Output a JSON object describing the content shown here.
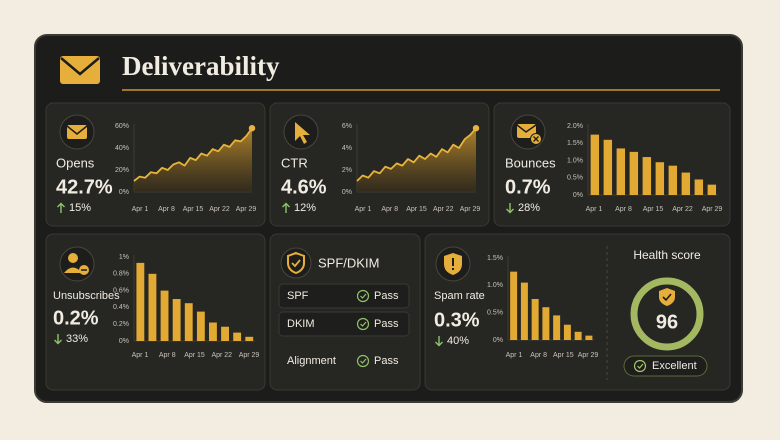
{
  "header": {
    "title": "Deliverability"
  },
  "cards": [
    {
      "label": "Opens",
      "value": "42.7%",
      "change": "15%",
      "direction": "up",
      "chart": {
        "type": "line",
        "color": "#e9b43c",
        "ylim": [
          0,
          60
        ],
        "yticks": [
          {
            "value": 0,
            "label": "0%"
          },
          {
            "value": 20,
            "label": "20%"
          },
          {
            "value": 40,
            "label": "40%"
          },
          {
            "value": 60,
            "label": "60%"
          }
        ],
        "xticks": [
          "Apr 1",
          "Apr 8",
          "Apr 15",
          "Apr 22",
          "Apr 29"
        ],
        "values": [
          10,
          14,
          13,
          18,
          17,
          22,
          20,
          25,
          27,
          24,
          31,
          29,
          35,
          33,
          39,
          37,
          43,
          41,
          47,
          46,
          51,
          58
        ]
      }
    },
    {
      "label": "CTR",
      "value": "4.6%",
      "change": "12%",
      "direction": "up",
      "chart": {
        "type": "line",
        "color": "#e9b43c",
        "ylim": [
          0,
          6
        ],
        "yticks": [
          {
            "value": 0,
            "label": "0%"
          },
          {
            "value": 2,
            "label": "2%"
          },
          {
            "value": 4,
            "label": "4%"
          },
          {
            "value": 6,
            "label": "6%"
          }
        ],
        "xticks": [
          "Apr 1",
          "Apr 8",
          "Apr 15",
          "Apr 22",
          "Apr 29"
        ],
        "values": [
          1.0,
          1.5,
          1.3,
          1.9,
          1.7,
          2.3,
          2.1,
          2.6,
          2.4,
          3.0,
          2.7,
          3.3,
          3.0,
          3.5,
          3.2,
          3.9,
          3.6,
          4.3,
          4.0,
          4.8,
          5.2,
          5.8
        ]
      }
    },
    {
      "label": "Bounces",
      "value": "0.7%",
      "change": "28%",
      "direction": "down",
      "chart": {
        "type": "bar",
        "color": "#e2aa33",
        "ylim": [
          0,
          2
        ],
        "yticks": [
          {
            "value": 0,
            "label": "0%"
          },
          {
            "value": 0.5,
            "label": "0.5%"
          },
          {
            "value": 1,
            "label": "1.0%"
          },
          {
            "value": 1.5,
            "label": "1.5%"
          },
          {
            "value": 2,
            "label": "2.0%"
          }
        ],
        "xticks": [
          "Apr 1",
          "Apr 8",
          "Apr 15",
          "Apr 22",
          "Apr 29"
        ],
        "values": [
          1.75,
          1.6,
          1.35,
          1.25,
          1.1,
          0.95,
          0.85,
          0.65,
          0.45,
          0.3
        ]
      }
    },
    {
      "label": "Unsubscribes",
      "value": "0.2%",
      "change": "33%",
      "direction": "down",
      "chart": {
        "type": "bar",
        "color": "#e2aa33",
        "ylim": [
          0,
          1
        ],
        "yticks": [
          {
            "value": 0,
            "label": "0%"
          },
          {
            "value": 0.2,
            "label": "0.2%"
          },
          {
            "value": 0.4,
            "label": "0.4%"
          },
          {
            "value": 0.6,
            "label": "0.6%"
          },
          {
            "value": 0.8,
            "label": "0.8%"
          },
          {
            "value": 1,
            "label": "1%"
          }
        ],
        "xticks": [
          "Apr 1",
          "Apr 8",
          "Apr 15",
          "Apr 22",
          "Apr 29"
        ],
        "values": [
          0.93,
          0.8,
          0.6,
          0.5,
          0.45,
          0.35,
          0.22,
          0.17,
          0.1,
          0.05
        ]
      }
    },
    {
      "label": "Spam rate",
      "value": "0.3%",
      "change": "40%",
      "direction": "down",
      "chart": {
        "type": "bar",
        "color": "#e2aa33",
        "ylim": [
          0,
          1.5
        ],
        "yticks": [
          {
            "value": 0,
            "label": "0%"
          },
          {
            "value": 0.5,
            "label": "0.5%"
          },
          {
            "value": 1,
            "label": "1.0%"
          },
          {
            "value": 1.5,
            "label": "1.5%"
          }
        ],
        "xticks": [
          "Apr 1",
          "Apr 8",
          "Apr 15",
          "Apr 29"
        ],
        "values": [
          1.25,
          1.05,
          0.75,
          0.6,
          0.45,
          0.28,
          0.15,
          0.08
        ]
      }
    }
  ],
  "auth": {
    "title": "SPF/DKIM",
    "rows": [
      {
        "name": "SPF",
        "status": "Pass"
      },
      {
        "name": "DKIM",
        "status": "Pass"
      },
      {
        "name": "Alignment",
        "status": "Pass"
      }
    ]
  },
  "health": {
    "title": "Health score",
    "score": 96,
    "status": "Excellent"
  }
}
